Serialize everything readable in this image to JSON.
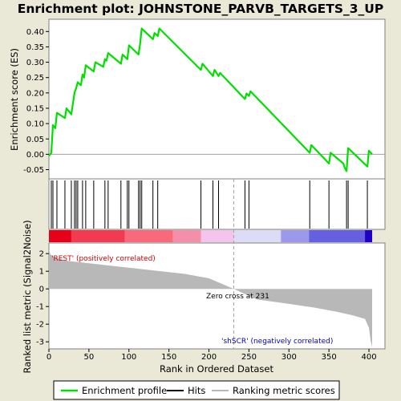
{
  "chart_data": {
    "type": "line",
    "title": "Enrichment plot: JOHNSTONE_PARVB_TARGETS_3_UP",
    "enrichment_panel": {
      "ylabel": "Enrichment score (ES)",
      "ylim": [
        -0.08,
        0.44
      ],
      "yticks": [
        "0.40",
        "0.35",
        "0.30",
        "0.25",
        "0.20",
        "0.15",
        "0.10",
        "0.05",
        "0.00",
        "-0.05"
      ],
      "ytick_values": [
        0.4,
        0.35,
        0.3,
        0.25,
        0.2,
        0.15,
        0.1,
        0.05,
        0.0,
        -0.05
      ],
      "series": [
        {
          "name": "Enrichment profile",
          "color": "#00e000",
          "x": [
            0,
            3,
            5,
            8,
            10,
            20,
            22,
            28,
            30,
            32,
            34,
            36,
            40,
            42,
            44,
            46,
            56,
            58,
            68,
            70,
            72,
            74,
            90,
            92,
            98,
            100,
            112,
            114,
            116,
            118,
            130,
            132,
            136,
            138,
            190,
            192,
            205,
            207,
            212,
            214,
            245,
            247,
            250,
            252,
            326,
            328,
            350,
            352,
            368,
            370,
            372,
            374,
            398,
            400,
            404
          ],
          "y": [
            -0.005,
            0.005,
            0.095,
            0.085,
            0.135,
            0.118,
            0.15,
            0.13,
            0.165,
            0.2,
            0.215,
            0.235,
            0.225,
            0.26,
            0.25,
            0.29,
            0.27,
            0.3,
            0.285,
            0.31,
            0.305,
            0.33,
            0.295,
            0.325,
            0.31,
            0.355,
            0.325,
            0.36,
            0.41,
            0.405,
            0.375,
            0.395,
            0.385,
            0.41,
            0.275,
            0.295,
            0.255,
            0.275,
            0.255,
            0.265,
            0.18,
            0.198,
            0.19,
            0.205,
            0.005,
            0.03,
            -0.03,
            0.005,
            -0.03,
            -0.045,
            -0.055,
            0.02,
            -0.04,
            0.012,
            0.0
          ]
        }
      ]
    },
    "hits_panel": {
      "legend_label": "Hits",
      "hit_ranks": [
        3,
        5,
        10,
        20,
        28,
        32,
        34,
        36,
        42,
        46,
        56,
        70,
        74,
        90,
        98,
        100,
        112,
        114,
        116,
        130,
        136,
        190,
        205,
        212,
        245,
        250,
        326,
        350,
        372,
        374,
        398
      ]
    },
    "ranked_list_panel": {
      "ylabel": "Ranked list metric (Signal2Noise)",
      "legend_label": "Ranking metric scores",
      "ylim": [
        -3.4,
        2.6
      ],
      "yticks": [
        "2",
        "1",
        "0",
        "-1",
        "-2",
        "-3"
      ],
      "ytick_values": [
        2,
        1,
        0,
        -1,
        -2,
        -3
      ],
      "x": [
        0,
        2,
        5,
        10,
        20,
        30,
        50,
        80,
        110,
        140,
        170,
        200,
        231,
        260,
        300,
        330,
        360,
        380,
        395,
        400,
        402,
        404
      ],
      "y": [
        2.2,
        1.95,
        1.85,
        1.75,
        1.62,
        1.55,
        1.45,
        1.3,
        1.15,
        1.0,
        0.85,
        0.6,
        0.0,
        -0.6,
        -0.85,
        -1.05,
        -1.3,
        -1.5,
        -1.7,
        -2.2,
        -2.9,
        -3.3
      ],
      "zero_cross_label": "Zero cross at 231",
      "zero_cross_rank": 231,
      "positive_label": "'REST' (positively correlated)",
      "negative_label": "'shSCR' (negatively correlated)",
      "positive_color": "#cc0000",
      "negative_color": "#0000cc"
    },
    "xlabel": "Rank in Ordered Dataset",
    "xlim": [
      0,
      420
    ],
    "xticks": [
      "0",
      "50",
      "100",
      "150",
      "200",
      "250",
      "300",
      "350",
      "400"
    ],
    "xtick_values": [
      0,
      50,
      100,
      150,
      200,
      250,
      300,
      350,
      400
    ],
    "legend": {
      "placement": "bottom",
      "items": [
        "Enrichment profile",
        "Hits",
        "Ranking metric scores"
      ]
    },
    "colors": {
      "enrichment_line": "#00e000",
      "hit_line": "#000000",
      "metric_fill": "#b8b8b8",
      "background": "#eae9d8",
      "axis_grid": "#808080"
    },
    "color_bar": {
      "segments": [
        {
          "from": 0,
          "to": 28,
          "color": "#e8001a"
        },
        {
          "from": 28,
          "to": 95,
          "color": "#f23a50"
        },
        {
          "from": 95,
          "to": 155,
          "color": "#f86a7a"
        },
        {
          "from": 155,
          "to": 190,
          "color": "#f58ea8"
        },
        {
          "from": 190,
          "to": 231,
          "color": "#f4c4ec"
        },
        {
          "from": 231,
          "to": 290,
          "color": "#dcdcf6"
        },
        {
          "from": 290,
          "to": 325,
          "color": "#9c98ec"
        },
        {
          "from": 325,
          "to": 395,
          "color": "#6460e0"
        },
        {
          "from": 395,
          "to": 404,
          "color": "#2000c8"
        }
      ]
    }
  }
}
